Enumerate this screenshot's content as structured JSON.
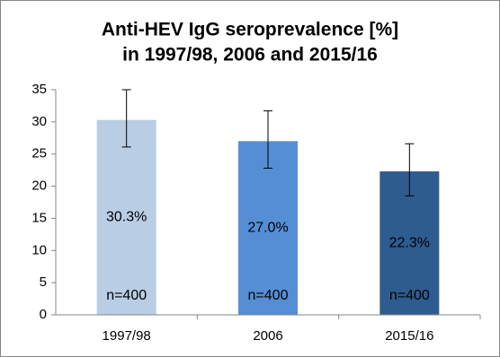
{
  "chart_data": {
    "type": "bar",
    "title_lines": [
      "Anti-HEV IgG seroprevalence [%]",
      "in 1997/98, 2006 and 2015/16"
    ],
    "categories": [
      "1997/98",
      "2006",
      "2015/16"
    ],
    "values": [
      30.3,
      27.0,
      22.3
    ],
    "value_labels": [
      "30.3%",
      "27.0%",
      "22.3%"
    ],
    "error_high": [
      4.7,
      4.7,
      4.3
    ],
    "error_low": [
      4.2,
      4.2,
      3.8
    ],
    "sample_labels": [
      "n=400",
      "n=400",
      "n=400"
    ],
    "colors": [
      "#b9cde5",
      "#558ed5",
      "#2f5c8f"
    ],
    "ylim": [
      0,
      35
    ],
    "yticks": [
      0,
      5,
      10,
      15,
      20,
      25,
      30,
      35
    ],
    "grid": false
  }
}
